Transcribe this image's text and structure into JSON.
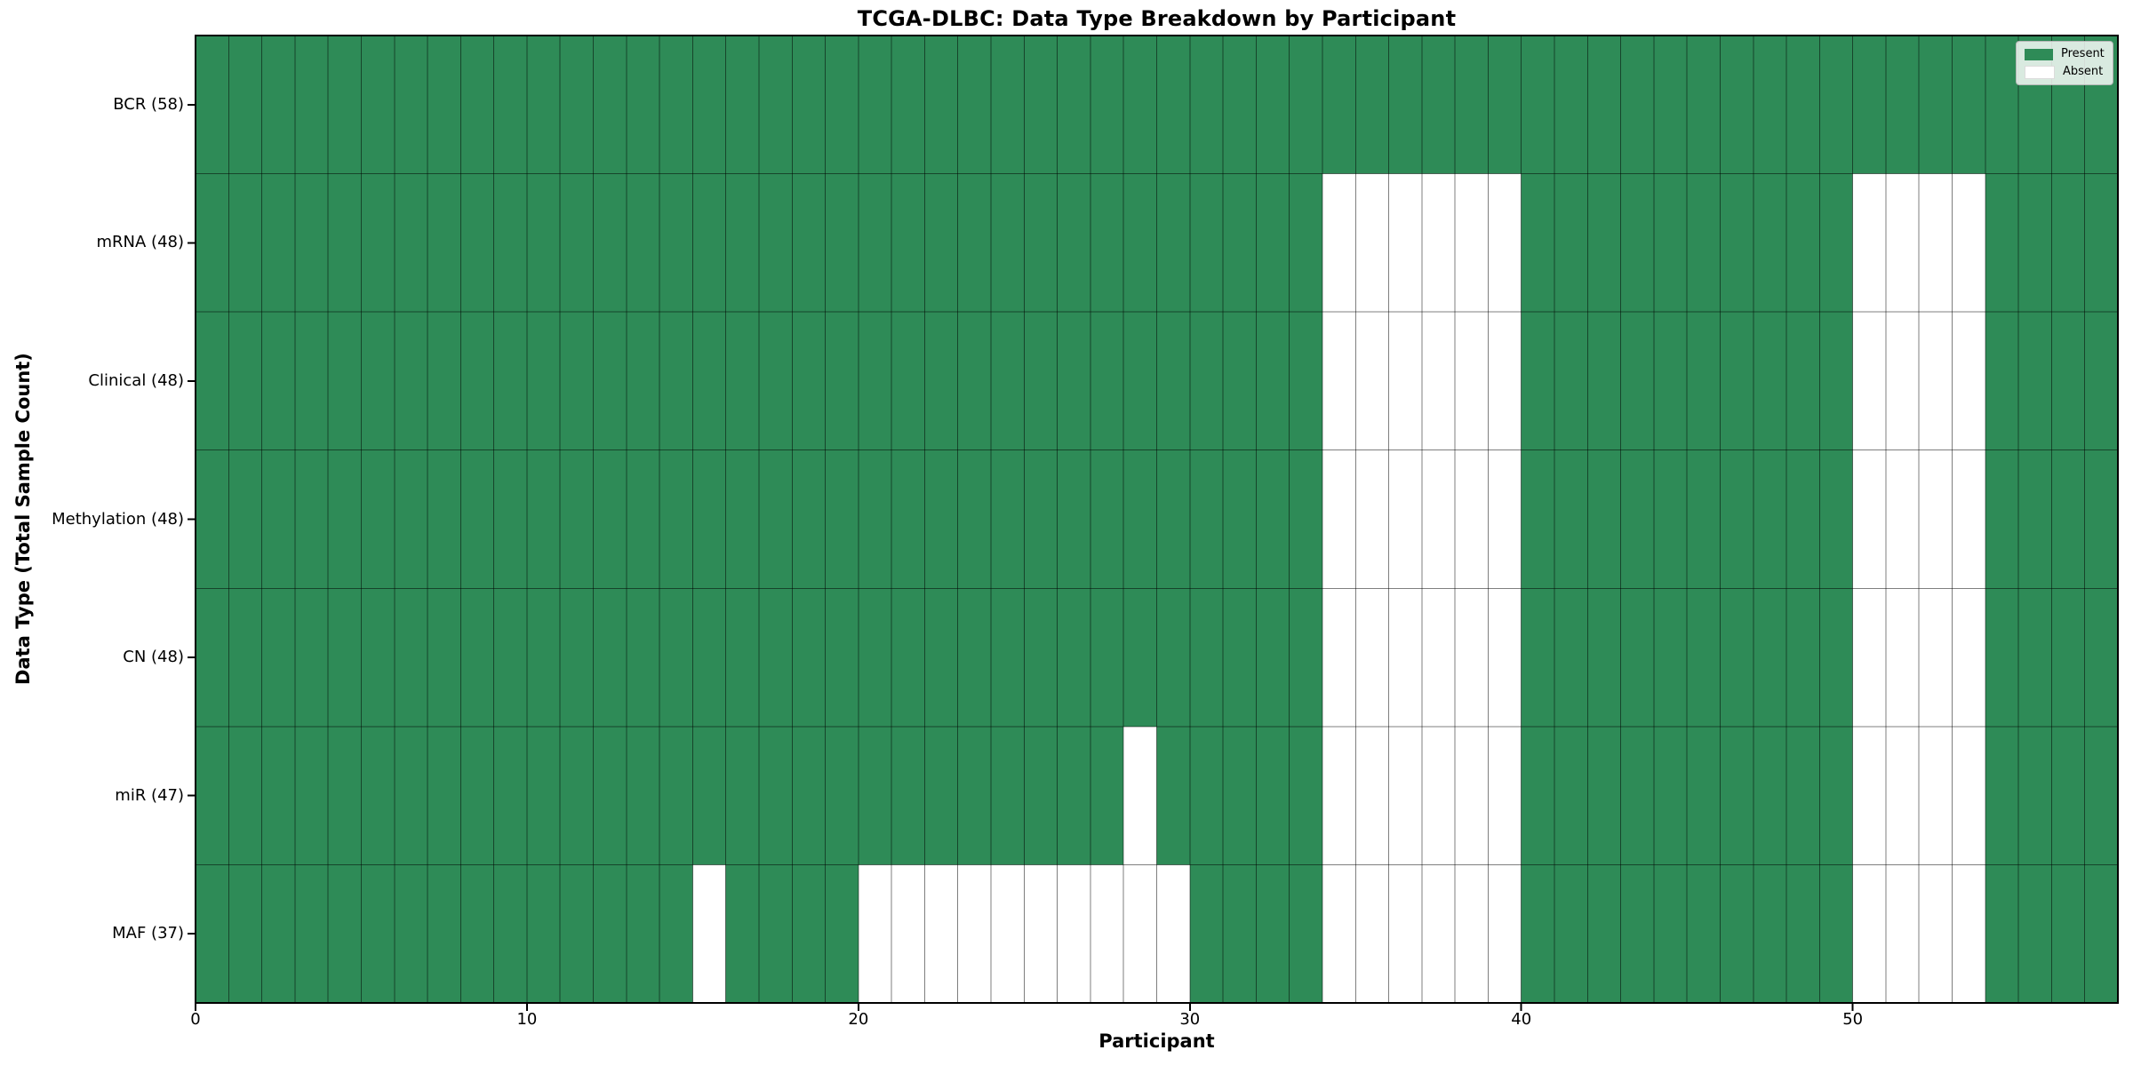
{
  "chart_data": {
    "type": "heatmap",
    "title": "TCGA-DLBC: Data Type Breakdown by Participant",
    "xlabel": "Participant",
    "ylabel": "Data Type (Total Sample Count)",
    "n_participants": 58,
    "x_range": [
      0,
      58
    ],
    "x_ticks": [
      0,
      10,
      20,
      30,
      40,
      50
    ],
    "grid": true,
    "legend_position": "upper right",
    "colors": {
      "present": "#2e8b57",
      "absent": "#ffffff",
      "grid_line": "rgba(0,0,0,0.5)",
      "border": "#000000"
    },
    "legend": [
      {
        "label": "Present",
        "color": "#2e8b57"
      },
      {
        "label": "Absent",
        "color": "#ffffff"
      }
    ],
    "rows": [
      {
        "label": "BCR (58)",
        "name": "BCR",
        "present_count": 58,
        "absent_participants": []
      },
      {
        "label": "mRNA (48)",
        "name": "mRNA",
        "present_count": 48,
        "absent_participants": [
          34,
          35,
          36,
          37,
          38,
          39,
          50,
          51,
          52,
          53
        ]
      },
      {
        "label": "Clinical (48)",
        "name": "Clinical",
        "present_count": 48,
        "absent_participants": [
          34,
          35,
          36,
          37,
          38,
          39,
          50,
          51,
          52,
          53
        ]
      },
      {
        "label": "Methylation (48)",
        "name": "Methylation",
        "present_count": 48,
        "absent_participants": [
          34,
          35,
          36,
          37,
          38,
          39,
          50,
          51,
          52,
          53
        ]
      },
      {
        "label": "CN (48)",
        "name": "CN",
        "present_count": 48,
        "absent_participants": [
          34,
          35,
          36,
          37,
          38,
          39,
          50,
          51,
          52,
          53
        ]
      },
      {
        "label": "miR (47)",
        "name": "miR",
        "present_count": 47,
        "absent_participants": [
          28,
          34,
          35,
          36,
          37,
          38,
          39,
          50,
          51,
          52,
          53
        ]
      },
      {
        "label": "MAF (37)",
        "name": "MAF",
        "present_count": 37,
        "absent_participants": [
          15,
          20,
          21,
          22,
          23,
          24,
          25,
          26,
          27,
          28,
          29,
          34,
          35,
          36,
          37,
          38,
          39,
          50,
          51,
          52,
          53
        ]
      }
    ]
  }
}
